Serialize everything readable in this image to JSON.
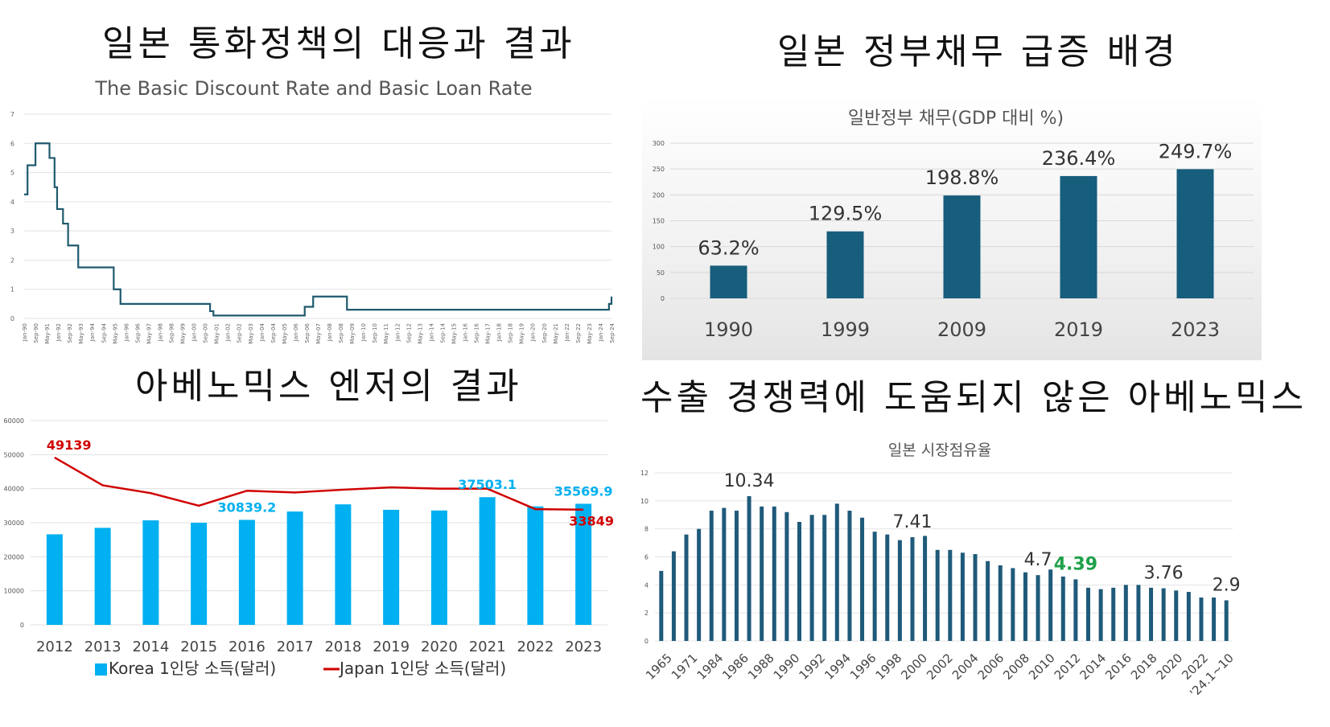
{
  "headings": {
    "top_left": "일본 통화정책의 대응과 결과",
    "top_right": "일본 정부채무 급증 배경",
    "bottom_left": "아베노믹스 엔저의 결과",
    "bottom_right": "수출 경쟁력에 도움되지 않은 아베노믹스"
  },
  "colors": {
    "rate_line": "#1f5a6e",
    "debt_bar": "#175d7c",
    "korea_bar": "#00b0f0",
    "japan_line": "#d00000",
    "share_bar": "#1f5a7a",
    "highlight_green": "#1fa04a"
  },
  "chart_data": [
    {
      "id": "discount-rate",
      "type": "line",
      "title": "The Basic Discount Rate and Basic Loan Rate",
      "ylim": [
        0,
        7
      ],
      "yticks": [
        "0",
        "1",
        "2",
        "3",
        "4",
        "5",
        "6",
        "7"
      ],
      "xticks": [
        "Jan-90",
        "Sep-90",
        "May-91",
        "Jan-92",
        "Sep-92",
        "May-93",
        "Jan-94",
        "Sep-94",
        "May-95",
        "Jan-96",
        "Sep-96",
        "May-97",
        "Jan-98",
        "Sep-98",
        "May-99",
        "Jan-00",
        "Sep-00",
        "May-01",
        "Jan-02",
        "Sep-02",
        "May-03",
        "Jan-04",
        "Sep-04",
        "May-05",
        "Jan-06",
        "Sep-06",
        "May-07",
        "Jan-08",
        "Sep-08",
        "May-09",
        "Jan-10",
        "Sep-10",
        "May-11",
        "Jan-12",
        "Sep-12",
        "May-13",
        "Jan-14",
        "Sep-14",
        "May-15",
        "Jan-16",
        "Sep-16",
        "May-17",
        "Jan-18",
        "Sep-18",
        "May-19",
        "Jan-20",
        "Sep-20",
        "May-21",
        "Jan-22",
        "Sep-22",
        "May-23",
        "Jan-24",
        "Sep-24"
      ],
      "x": [
        1990.0,
        1990.1,
        1990.2,
        1990.67,
        1991.5,
        1991.8,
        1991.95,
        1992.3,
        1992.6,
        1993.2,
        1993.75,
        1995.3,
        1995.7,
        2001.0,
        2001.2,
        2001.8,
        2006.6,
        2007.1,
        2008.8,
        2009.1,
        2024.2,
        2024.6,
        2024.75
      ],
      "values": [
        4.25,
        4.25,
        5.25,
        6.0,
        5.5,
        4.5,
        3.75,
        3.25,
        2.5,
        1.75,
        1.75,
        1.0,
        0.5,
        0.25,
        0.1,
        0.1,
        0.4,
        0.75,
        0.75,
        0.3,
        0.3,
        0.5,
        0.75
      ],
      "xlim": [
        1990.0,
        2024.75
      ]
    },
    {
      "id": "gov-debt",
      "type": "bar",
      "title": "일반정부 채무(GDP 대비 %)",
      "categories": [
        "1990",
        "1999",
        "2009",
        "2019",
        "2023"
      ],
      "values": [
        63.2,
        129.5,
        198.8,
        236.4,
        249.7
      ],
      "labels": [
        "63.2%",
        "129.5%",
        "198.8%",
        "236.4%",
        "249.7%"
      ],
      "ylim": [
        0,
        300
      ],
      "yticks": [
        "0",
        "50",
        "100",
        "150",
        "200",
        "250",
        "300"
      ]
    },
    {
      "id": "income",
      "type": "bar",
      "title": "",
      "categories": [
        "2012",
        "2013",
        "2014",
        "2015",
        "2016",
        "2017",
        "2018",
        "2019",
        "2020",
        "2021",
        "2022",
        "2023"
      ],
      "series": [
        {
          "name": "Korea 1인당 소득(달러)",
          "kind": "bar",
          "values": [
            26600,
            28500,
            30700,
            30000,
            30839.2,
            33300,
            35400,
            33800,
            33600,
            37503.1,
            34800,
            35569.9
          ]
        },
        {
          "name": "Japan 1인당 소득(달러)",
          "kind": "line",
          "values": [
            49139,
            41000,
            38700,
            35000,
            39400,
            38900,
            39700,
            40400,
            40000,
            40000,
            34000,
            33849
          ]
        }
      ],
      "data_labels": [
        {
          "text": "49139",
          "series": "Japan",
          "index": 0
        },
        {
          "text": "30839.2",
          "series": "Korea",
          "index": 4
        },
        {
          "text": "37503.1",
          "series": "Korea",
          "index": 9
        },
        {
          "text": "35569.9",
          "series": "Korea",
          "index": 11
        },
        {
          "text": "33849",
          "series": "Japan",
          "index": 11
        }
      ],
      "ylim": [
        0,
        60000
      ],
      "yticks": [
        "0",
        "10000",
        "20000",
        "30000",
        "40000",
        "50000",
        "60000"
      ],
      "legend": [
        "Korea 1인당 소득(달러)",
        "Japan 1인당 소득(달러)"
      ]
    },
    {
      "id": "market-share",
      "type": "bar",
      "title": "일본 시장점유율",
      "values": [
        5.0,
        6.4,
        7.6,
        8.0,
        9.3,
        9.5,
        9.3,
        10.34,
        9.6,
        9.6,
        9.2,
        8.5,
        9.0,
        9.0,
        9.8,
        9.3,
        8.8,
        7.8,
        7.6,
        7.2,
        7.41,
        7.5,
        6.5,
        6.5,
        6.3,
        6.2,
        5.7,
        5.4,
        5.2,
        4.9,
        4.7,
        5.1,
        4.6,
        4.4,
        3.8,
        3.7,
        3.8,
        4.0,
        4.0,
        3.8,
        3.76,
        3.6,
        3.5,
        3.1,
        3.1,
        2.9
      ],
      "xticks": [
        "1965",
        "1971",
        "1984",
        "1986",
        "1988",
        "1990",
        "1992",
        "1994",
        "1996",
        "1998",
        "2000",
        "2002",
        "2004",
        "2006",
        "2008",
        "2010",
        "2012",
        "2014",
        "2016",
        "2018",
        "2020",
        "2022",
        "'24.1~10"
      ],
      "annotations": [
        {
          "text": "10.34",
          "index": 7,
          "highlight": false
        },
        {
          "text": "7.41",
          "index": 20,
          "highlight": false
        },
        {
          "text": "4.7",
          "index": 30,
          "highlight": false
        },
        {
          "text": "4.39",
          "index": 33,
          "highlight": true
        },
        {
          "text": "3.76",
          "index": 40,
          "highlight": false
        },
        {
          "text": "2.9",
          "index": 45,
          "highlight": false
        }
      ],
      "ylim": [
        0,
        12
      ],
      "yticks": [
        "0",
        "2",
        "4",
        "6",
        "8",
        "10",
        "12"
      ]
    }
  ]
}
